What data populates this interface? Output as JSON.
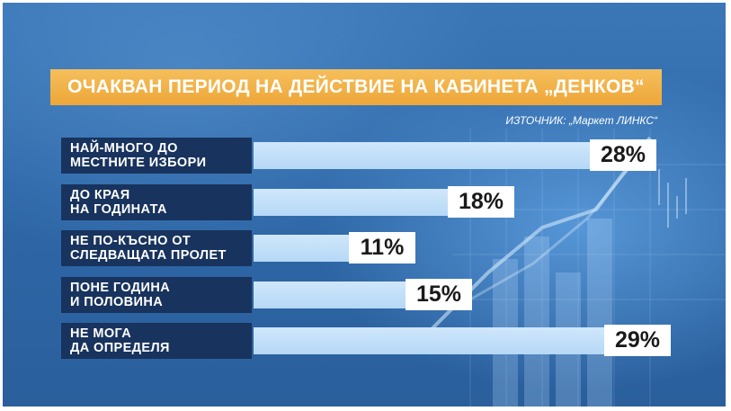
{
  "chart_data": {
    "type": "bar",
    "orientation": "horizontal",
    "title": "ОЧАКВАН ПЕРИОД НА ДЕЙСТВИЕ НА КАБИНЕТА „ДЕНКОВ“",
    "source": "ИЗТОЧНИК: „Маркет ЛИНКС“",
    "categories": [
      [
        "НАЙ-МНОГО ДО",
        "МЕСТНИТЕ ИЗБОРИ"
      ],
      [
        "ДО КРАЯ",
        "НА ГОДИНАТА"
      ],
      [
        "НЕ ПО-КЪСНО ОТ",
        "СЛЕДВАЩАТА ПРОЛЕТ"
      ],
      [
        "ПОНЕ ГОДИНА",
        "И ПОЛОВИНА"
      ],
      [
        "НЕ МОГА",
        "ДА ОПРЕДЕЛЯ"
      ]
    ],
    "values": [
      28,
      18,
      11,
      15,
      29
    ],
    "value_labels": [
      "28%",
      "18%",
      "11%",
      "15%",
      "29%"
    ],
    "unit": "%",
    "colors": {
      "title_banner": "#eea638",
      "label_box": "#18335d",
      "bar": "#b6d8f6",
      "value_box": "#ffffff",
      "background": "#2f68a8"
    }
  }
}
